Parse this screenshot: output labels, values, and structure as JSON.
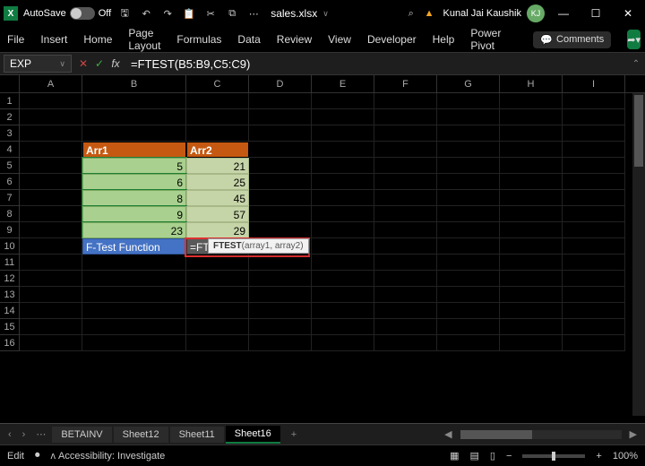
{
  "titlebar": {
    "autosave_label": "AutoSave",
    "autosave_state": "Off",
    "filename": "sales.xlsx",
    "search_icon": "⌕",
    "user_name": "Kunal Jai Kaushik",
    "user_initials": "KJ"
  },
  "ribbon": {
    "tabs": [
      "File",
      "Insert",
      "Home",
      "Page Layout",
      "Formulas",
      "Data",
      "Review",
      "View",
      "Developer",
      "Help",
      "Power Pivot"
    ],
    "comments_label": "Comments"
  },
  "formula_bar": {
    "namebox": "EXP",
    "formula": "=FTEST(B5:B9,C5:C9)"
  },
  "grid": {
    "columns": [
      "A",
      "B",
      "C",
      "D",
      "E",
      "F",
      "G",
      "H",
      "I"
    ],
    "row_count": 16,
    "headers": {
      "b4": "Arr1",
      "c4": "Arr2"
    },
    "arr1": [
      "5",
      "6",
      "8",
      "9",
      "23"
    ],
    "arr2": [
      "21",
      "25",
      "45",
      "57",
      "29"
    ],
    "label_b10": "F-Test Function",
    "cell_c10_prefix": "=FTEST(",
    "cell_c10_range1": "B5:B9",
    "cell_c10_sep": ",",
    "cell_c10_range2": "C5:C9",
    "cell_c10_suffix": ")"
  },
  "tooltip": {
    "fn": "FTEST",
    "args": "(array1, array2)"
  },
  "sheet_tabs": {
    "tabs": [
      "BETAINV",
      "Sheet12",
      "Sheet11",
      "Sheet16"
    ],
    "active": "Sheet16"
  },
  "statusbar": {
    "mode": "Edit",
    "accessibility": "Accessibility: Investigate",
    "zoom": "100%"
  },
  "colors": {
    "header_fill": "#c65911",
    "arr1_fill": "#a9d08e",
    "arr2_fill": "#c6d5a8",
    "label_fill": "#4472c4",
    "ref1": "#00b0f0",
    "ref2": "#ffc000",
    "accent": "#107c41",
    "highlight_border": "#e03030"
  }
}
